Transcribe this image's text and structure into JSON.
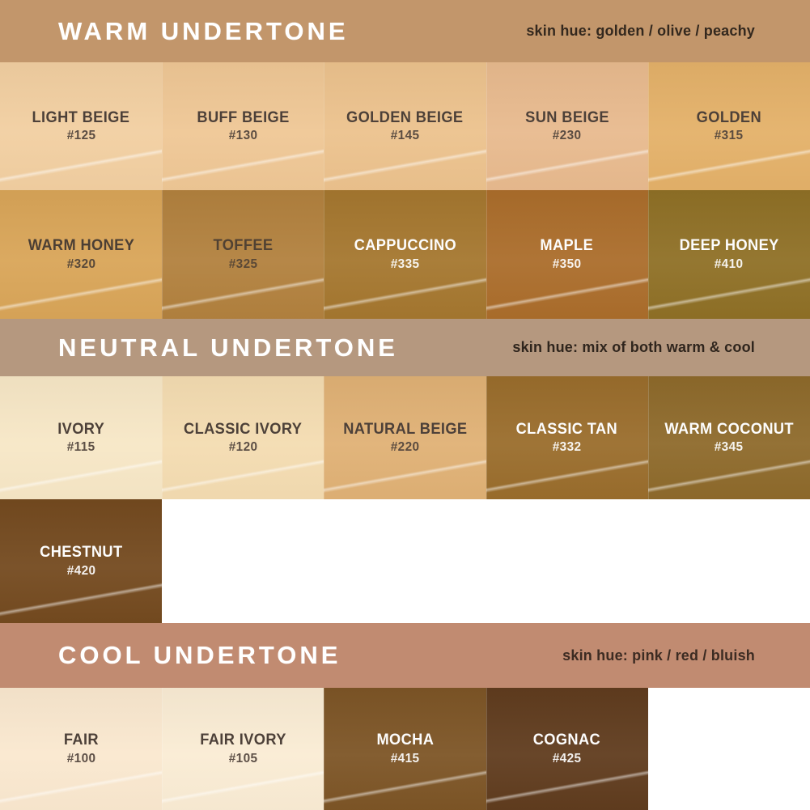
{
  "sections": {
    "warm": {
      "header": {
        "title": "WARM UNDERTONE",
        "subtitle": "skin hue: golden / olive / peachy",
        "bg": "#C2966B",
        "title_color": "#FFFFFF",
        "subtitle_color": "#33281E"
      },
      "rows": [
        [
          {
            "name": "LIGHT BEIGE",
            "code": "#125",
            "color": "#F2CFA1",
            "text_color": "#463931"
          },
          {
            "name": "BUFF BEIGE",
            "code": "#130",
            "color": "#EFC795",
            "text_color": "#463931"
          },
          {
            "name": "GOLDEN BEIGE",
            "code": "#145",
            "color": "#ECC28D",
            "text_color": "#463931"
          },
          {
            "name": "SUN BEIGE",
            "code": "#230",
            "color": "#E8BA8E",
            "text_color": "#463931"
          },
          {
            "name": "GOLDEN",
            "code": "#315",
            "color": "#E4B169",
            "text_color": "#463931"
          }
        ],
        [
          {
            "name": "WARM HONEY",
            "code": "#320",
            "color": "#D9A558",
            "text_color": "#44372C"
          },
          {
            "name": "TOFFEE",
            "code": "#325",
            "color": "#B2813E",
            "text_color": "#4A3A2B"
          },
          {
            "name": "CAPPUCCINO",
            "code": "#335",
            "color": "#A5772F",
            "text_color": "#FFFFFF"
          },
          {
            "name": "MAPLE",
            "code": "#350",
            "color": "#AB6D2B",
            "text_color": "#FFFFFF"
          },
          {
            "name": "DEEP HONEY",
            "code": "#410",
            "color": "#8F7026",
            "text_color": "#FFFFFF"
          }
        ]
      ]
    },
    "neutral": {
      "header": {
        "title": "NEUTRAL UNDERTONE",
        "subtitle": "skin hue: mix of both warm & cool",
        "bg": "#B5987F",
        "title_color": "#FFFFFF",
        "subtitle_color": "#2F251D"
      },
      "rows": [
        [
          {
            "name": "IVORY",
            "code": "#115",
            "color": "#F7E7C6",
            "text_color": "#463931"
          },
          {
            "name": "CLASSIC IVORY",
            "code": "#120",
            "color": "#F4DCB1",
            "text_color": "#463931"
          },
          {
            "name": "NATURAL BEIGE",
            "code": "#220",
            "color": "#E0B175",
            "text_color": "#463931"
          },
          {
            "name": "CLASSIC TAN",
            "code": "#332",
            "color": "#9A6D2C",
            "text_color": "#FFFFFF"
          },
          {
            "name": "WARM COCONUT",
            "code": "#345",
            "color": "#8E6A2B",
            "text_color": "#FFFFFF"
          }
        ],
        [
          {
            "name": "CHESTNUT",
            "code": "#420",
            "color": "#744A1F",
            "text_color": "#FFFFFF"
          }
        ]
      ]
    },
    "cool": {
      "header": {
        "title": "COOL UNDERTONE",
        "subtitle": "skin hue: pink / red / bluish",
        "bg": "#C18B71",
        "title_color": "#FFFFFF",
        "subtitle_color": "#3C2B22"
      },
      "rows": [
        [
          {
            "name": "FAIR",
            "code": "#100",
            "color": "#FAE8CF",
            "text_color": "#463931"
          },
          {
            "name": "FAIR IVORY",
            "code": "#105",
            "color": "#FAECD4",
            "text_color": "#463931"
          },
          {
            "name": "MOCHA",
            "code": "#415",
            "color": "#7D5526",
            "text_color": "#FFFFFF"
          },
          {
            "name": "COGNAC",
            "code": "#425",
            "color": "#603C1E",
            "text_color": "#FFFFFF"
          }
        ]
      ]
    }
  },
  "chart_data": {
    "type": "table",
    "title": "Foundation shade chart grouped by undertone",
    "sections": [
      {
        "undertone": "WARM UNDERTONE",
        "skin_hue": "golden / olive / peachy",
        "shades": [
          {
            "name": "LIGHT BEIGE",
            "code": "#125"
          },
          {
            "name": "BUFF BEIGE",
            "code": "#130"
          },
          {
            "name": "GOLDEN BEIGE",
            "code": "#145"
          },
          {
            "name": "SUN BEIGE",
            "code": "#230"
          },
          {
            "name": "GOLDEN",
            "code": "#315"
          },
          {
            "name": "WARM HONEY",
            "code": "#320"
          },
          {
            "name": "TOFFEE",
            "code": "#325"
          },
          {
            "name": "CAPPUCCINO",
            "code": "#335"
          },
          {
            "name": "MAPLE",
            "code": "#350"
          },
          {
            "name": "DEEP HONEY",
            "code": "#410"
          }
        ]
      },
      {
        "undertone": "NEUTRAL UNDERTONE",
        "skin_hue": "mix of both warm & cool",
        "shades": [
          {
            "name": "IVORY",
            "code": "#115"
          },
          {
            "name": "CLASSIC IVORY",
            "code": "#120"
          },
          {
            "name": "NATURAL BEIGE",
            "code": "#220"
          },
          {
            "name": "CLASSIC TAN",
            "code": "#332"
          },
          {
            "name": "WARM COCONUT",
            "code": "#345"
          },
          {
            "name": "CHESTNUT",
            "code": "#420"
          }
        ]
      },
      {
        "undertone": "COOL UNDERTONE",
        "skin_hue": "pink / red / bluish",
        "shades": [
          {
            "name": "FAIR",
            "code": "#100"
          },
          {
            "name": "FAIR IVORY",
            "code": "#105"
          },
          {
            "name": "MOCHA",
            "code": "#415"
          },
          {
            "name": "COGNAC",
            "code": "#425"
          }
        ]
      }
    ]
  }
}
